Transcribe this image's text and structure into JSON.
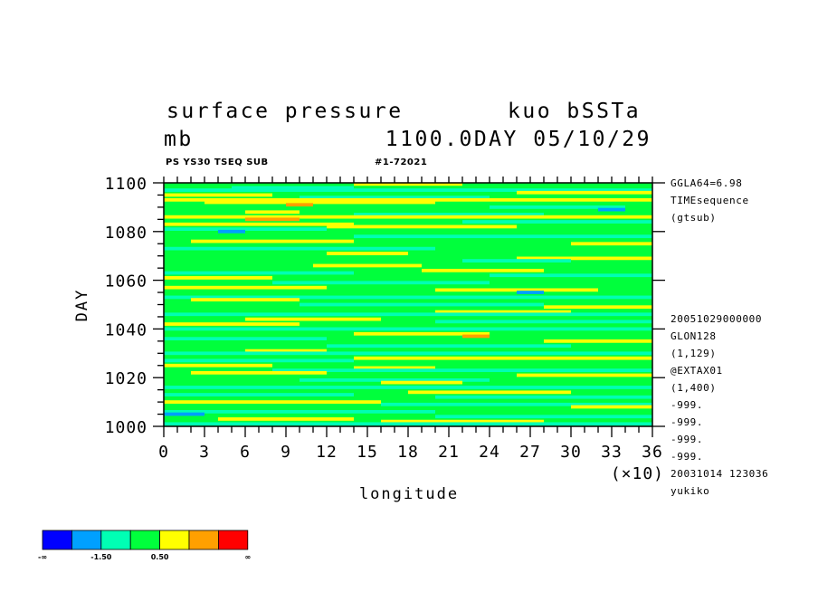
{
  "header": {
    "variable": "surface pressure",
    "experiment": "kuo bSSTa",
    "unit": "mb",
    "time_label": "1100.0DAY 05/10/29",
    "subtitle_left": "PS YS30 TSEQ SUB",
    "subtitle_right": "#1-72021"
  },
  "side_info": {
    "top": [
      "GGLA64=6.98",
      "TIMEsequence",
      "(gtsub)"
    ],
    "bottom": [
      "20051029000000",
      "GLON128",
      "(1,129)",
      "@EXTAX01",
      "(1,400)",
      "-999.",
      "-999.",
      "-999.",
      "-999.",
      "20031014 123036",
      "yukiko"
    ]
  },
  "colorbar": {
    "colors": [
      "#0000ff",
      "#00a0ff",
      "#00ffb4",
      "#00ff3c",
      "#ffff00",
      "#ffa000",
      "#ff0000"
    ],
    "labels": [
      "-∞",
      "-1.50",
      "0.50",
      "∞"
    ]
  },
  "chart_data": {
    "type": "heatmap",
    "title": "surface pressure",
    "xlabel": "longitude",
    "ylabel": "DAY",
    "x_multiplier_label": "(×10)",
    "xlim": [
      0,
      36
    ],
    "ylim": [
      1000,
      1100
    ],
    "x_ticks": [
      "0",
      "3",
      "6",
      "9",
      "12",
      "15",
      "18",
      "21",
      "24",
      "27",
      "30",
      "33",
      "36"
    ],
    "y_ticks": [
      "1000",
      "1020",
      "1040",
      "1060",
      "1080",
      "1100"
    ],
    "levels": [
      -1.5,
      -0.5,
      0.5,
      1.5,
      2.5
    ],
    "level_colors": [
      "#0000ff",
      "#00a0ff",
      "#00ffb4",
      "#00ff3c",
      "#ffff00",
      "#ffa000",
      "#ff0000"
    ],
    "bands": [
      {
        "day": 1099.5,
        "color": "#ffff00",
        "x": [
          14,
          22
        ]
      },
      {
        "day": 1098,
        "color": "#00ffb4",
        "x": [
          5,
          14
        ]
      },
      {
        "day": 1097,
        "color": "#00ffb4",
        "x": [
          0,
          36
        ]
      },
      {
        "day": 1096,
        "color": "#ffff00",
        "x": [
          26,
          36
        ]
      },
      {
        "day": 1095,
        "color": "#ffff00",
        "x": [
          0,
          8
        ]
      },
      {
        "day": 1094,
        "color": "#00ffb4",
        "x": [
          10,
          24
        ]
      },
      {
        "day": 1093,
        "color": "#ffff00",
        "x": [
          0,
          36
        ]
      },
      {
        "day": 1092,
        "color": "#ffff00",
        "x": [
          3,
          20
        ]
      },
      {
        "day": 1091,
        "color": "#ffa000",
        "x": [
          9,
          11
        ]
      },
      {
        "day": 1090,
        "color": "#00ffb4",
        "x": [
          24,
          34
        ]
      },
      {
        "day": 1089,
        "color": "#00a0ff",
        "x": [
          32,
          34
        ]
      },
      {
        "day": 1088,
        "color": "#ffff00",
        "x": [
          6,
          10
        ]
      },
      {
        "day": 1087,
        "color": "#00ffb4",
        "x": [
          14,
          28
        ]
      },
      {
        "day": 1086,
        "color": "#ffff00",
        "x": [
          0,
          36
        ]
      },
      {
        "day": 1085,
        "color": "#ffa000",
        "x": [
          6,
          10
        ]
      },
      {
        "day": 1084,
        "color": "#00ffb4",
        "x": [
          22,
          36
        ]
      },
      {
        "day": 1083,
        "color": "#ffff00",
        "x": [
          0,
          14
        ]
      },
      {
        "day": 1082,
        "color": "#ffff00",
        "x": [
          12,
          26
        ]
      },
      {
        "day": 1081,
        "color": "#00ffb4",
        "x": [
          0,
          12
        ]
      },
      {
        "day": 1080,
        "color": "#00a0ff",
        "x": [
          4,
          6
        ]
      },
      {
        "day": 1078,
        "color": "#00ffb4",
        "x": [
          14,
          36
        ]
      },
      {
        "day": 1076,
        "color": "#ffff00",
        "x": [
          2,
          14
        ]
      },
      {
        "day": 1075,
        "color": "#ffff00",
        "x": [
          30,
          36
        ]
      },
      {
        "day": 1073,
        "color": "#00ffb4",
        "x": [
          0,
          20
        ]
      },
      {
        "day": 1071,
        "color": "#ffff00",
        "x": [
          12,
          18
        ]
      },
      {
        "day": 1069,
        "color": "#ffff00",
        "x": [
          26,
          36
        ]
      },
      {
        "day": 1068,
        "color": "#00ffb4",
        "x": [
          22,
          30
        ]
      },
      {
        "day": 1066,
        "color": "#ffff00",
        "x": [
          11,
          19
        ]
      },
      {
        "day": 1064,
        "color": "#ffff00",
        "x": [
          19,
          28
        ]
      },
      {
        "day": 1063,
        "color": "#00ffb4",
        "x": [
          0,
          14
        ]
      },
      {
        "day": 1062,
        "color": "#00ffb4",
        "x": [
          24,
          36
        ]
      },
      {
        "day": 1061,
        "color": "#ffff00",
        "x": [
          0,
          8
        ]
      },
      {
        "day": 1059,
        "color": "#00ffb4",
        "x": [
          8,
          24
        ]
      },
      {
        "day": 1057,
        "color": "#ffff00",
        "x": [
          0,
          12
        ]
      },
      {
        "day": 1056,
        "color": "#ffff00",
        "x": [
          20,
          32
        ]
      },
      {
        "day": 1055,
        "color": "#00a0ff",
        "x": [
          26,
          28
        ]
      },
      {
        "day": 1053,
        "color": "#00ffb4",
        "x": [
          0,
          36
        ]
      },
      {
        "day": 1052,
        "color": "#ffff00",
        "x": [
          2,
          10
        ]
      },
      {
        "day": 1050,
        "color": "#00ffb4",
        "x": [
          10,
          28
        ]
      },
      {
        "day": 1049,
        "color": "#ffff00",
        "x": [
          28,
          36
        ]
      },
      {
        "day": 1047,
        "color": "#ffff00",
        "x": [
          20,
          30
        ]
      },
      {
        "day": 1046,
        "color": "#00ffb4",
        "x": [
          0,
          36
        ]
      },
      {
        "day": 1044,
        "color": "#ffff00",
        "x": [
          6,
          16
        ]
      },
      {
        "day": 1043,
        "color": "#00ffb4",
        "x": [
          20,
          36
        ]
      },
      {
        "day": 1042,
        "color": "#ffff00",
        "x": [
          0,
          10
        ]
      },
      {
        "day": 1040,
        "color": "#00ffb4",
        "x": [
          0,
          36
        ]
      },
      {
        "day": 1038,
        "color": "#ffff00",
        "x": [
          14,
          24
        ]
      },
      {
        "day": 1037,
        "color": "#ffa000",
        "x": [
          22,
          24
        ]
      },
      {
        "day": 1036,
        "color": "#00ffb4",
        "x": [
          0,
          12
        ]
      },
      {
        "day": 1035,
        "color": "#ffff00",
        "x": [
          28,
          36
        ]
      },
      {
        "day": 1033,
        "color": "#00ffb4",
        "x": [
          12,
          30
        ]
      },
      {
        "day": 1031,
        "color": "#ffff00",
        "x": [
          6,
          12
        ]
      },
      {
        "day": 1030,
        "color": "#00ffb4",
        "x": [
          0,
          36
        ]
      },
      {
        "day": 1028,
        "color": "#ffff00",
        "x": [
          14,
          36
        ]
      },
      {
        "day": 1027,
        "color": "#00ffb4",
        "x": [
          0,
          14
        ]
      },
      {
        "day": 1025,
        "color": "#ffff00",
        "x": [
          0,
          8
        ]
      },
      {
        "day": 1024,
        "color": "#ffff00",
        "x": [
          14,
          20
        ]
      },
      {
        "day": 1023,
        "color": "#00ffb4",
        "x": [
          8,
          36
        ]
      },
      {
        "day": 1022,
        "color": "#ffff00",
        "x": [
          2,
          12
        ]
      },
      {
        "day": 1021,
        "color": "#ffff00",
        "x": [
          26,
          36
        ]
      },
      {
        "day": 1019,
        "color": "#00ffb4",
        "x": [
          10,
          24
        ]
      },
      {
        "day": 1018,
        "color": "#ffff00",
        "x": [
          16,
          22
        ]
      },
      {
        "day": 1016,
        "color": "#00ffb4",
        "x": [
          0,
          36
        ]
      },
      {
        "day": 1014,
        "color": "#ffff00",
        "x": [
          18,
          30
        ]
      },
      {
        "day": 1013,
        "color": "#00ffb4",
        "x": [
          0,
          14
        ]
      },
      {
        "day": 1012,
        "color": "#00ffb4",
        "x": [
          20,
          36
        ]
      },
      {
        "day": 1010,
        "color": "#ffff00",
        "x": [
          0,
          16
        ]
      },
      {
        "day": 1009,
        "color": "#00ffb4",
        "x": [
          16,
          36
        ]
      },
      {
        "day": 1008,
        "color": "#ffff00",
        "x": [
          30,
          36
        ]
      },
      {
        "day": 1006,
        "color": "#00ffb4",
        "x": [
          0,
          20
        ]
      },
      {
        "day": 1005,
        "color": "#00a0ff",
        "x": [
          0,
          3
        ]
      },
      {
        "day": 1004,
        "color": "#00ffb4",
        "x": [
          20,
          36
        ]
      },
      {
        "day": 1003,
        "color": "#ffff00",
        "x": [
          4,
          14
        ]
      },
      {
        "day": 1002,
        "color": "#ffff00",
        "x": [
          16,
          28
        ]
      },
      {
        "day": 1001,
        "color": "#00ffb4",
        "x": [
          0,
          36
        ]
      }
    ],
    "grid": false
  }
}
